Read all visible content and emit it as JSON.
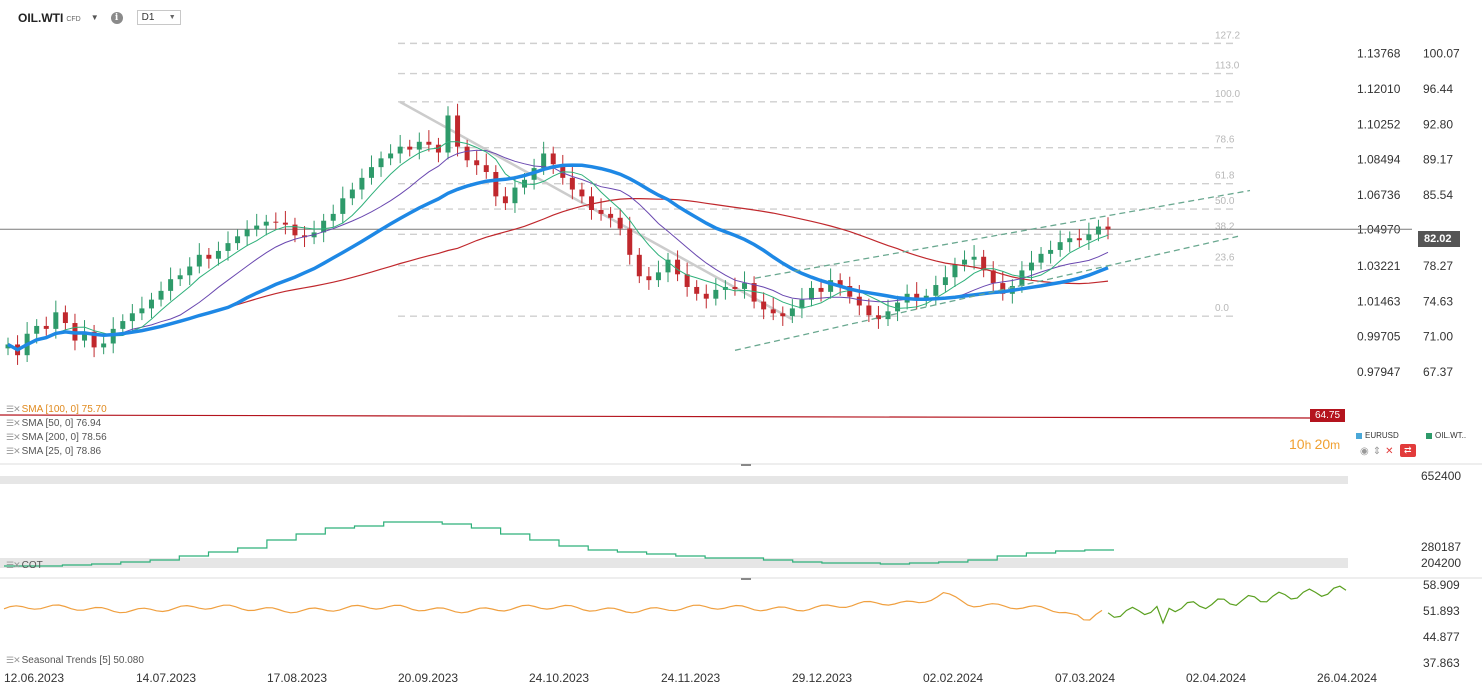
{
  "header": {
    "symbol": "OIL.WTI",
    "symbol_type": "CFD",
    "timeframe": "D1"
  },
  "last_price": "82.02",
  "support_price_tag": "64.75",
  "legend": [
    {
      "label": "SMA [100, 0] 75.70",
      "color": "#e08a1e"
    },
    {
      "label": "SMA [50, 0] 76.94",
      "color": "#555555"
    },
    {
      "label": "SMA [200, 0] 78.56",
      "color": "#555555"
    },
    {
      "label": "SMA [25, 0] 78.86",
      "color": "#555555"
    }
  ],
  "timer": {
    "hours": "10",
    "minutes": "20"
  },
  "overlay_legend": {
    "eurusd": "EURUSD",
    "oilwti": "OIL.WT..",
    "eurusd_color": "#4aa8d8",
    "oil_color": "#2e9a6a"
  },
  "cot_label": "COT",
  "seasonal_label": "Seasonal  Trends [5] 50.080",
  "colors": {
    "up": "#2e9a6a",
    "down": "#c0282d",
    "sma_blue": "#1e88e5",
    "sma_red": "#c0282d",
    "sma_green": "#2eb07a",
    "sma_purple": "#6a48b0",
    "seasonal_orange": "#f0a040",
    "seasonal_green": "#5aa020"
  },
  "chart_data": [
    {
      "type": "candlestick",
      "title": "OIL.WTI D1",
      "x_ticks": [
        "12.06.2023",
        "14.07.2023",
        "17.08.2023",
        "20.09.2023",
        "24.10.2023",
        "24.11.2023",
        "29.12.2023",
        "02.02.2024",
        "07.03.2024",
        "02.04.2024",
        "26.04.2024"
      ],
      "y_ticks_right": [
        "100.07",
        "96.44",
        "92.80",
        "89.17",
        "85.54",
        "82.02",
        "78.27",
        "74.63",
        "71.00",
        "67.37"
      ],
      "y_ticks_eurusd": [
        "1.13768",
        "1.12010",
        "1.10252",
        "1.08494",
        "1.06736",
        "1.04970",
        "1.03221",
        "1.01463",
        "0.99705",
        "0.97947"
      ],
      "ylim": [
        64.5,
        103.5
      ],
      "fibonacci_levels": [
        "127.2",
        "113.0",
        "100.0",
        "78.6",
        "61.8",
        "50.0",
        "38.2",
        "23.6",
        "0.0"
      ],
      "fibonacci_prices": [
        101.1,
        98.0,
        95.1,
        90.4,
        86.7,
        84.1,
        81.5,
        78.3,
        73.1
      ],
      "close": [
        70.2,
        69.1,
        71.3,
        72.1,
        71.8,
        73.5,
        72.4,
        70.6,
        71.5,
        69.9,
        70.3,
        71.8,
        72.6,
        73.4,
        73.9,
        74.8,
        75.7,
        76.9,
        77.3,
        78.2,
        79.4,
        79.0,
        79.8,
        80.6,
        81.3,
        82.0,
        82.4,
        82.8,
        82.7,
        82.5,
        81.4,
        81.2,
        81.7,
        82.9,
        83.6,
        85.2,
        86.1,
        87.3,
        88.4,
        89.3,
        89.8,
        90.5,
        90.2,
        91.0,
        90.7,
        89.9,
        93.7,
        90.5,
        89.1,
        88.6,
        87.9,
        85.4,
        84.7,
        86.3,
        87.1,
        88.3,
        89.8,
        88.7,
        87.3,
        86.1,
        85.4,
        84.0,
        83.6,
        83.2,
        82.1,
        79.4,
        77.2,
        76.8,
        77.6,
        78.9,
        77.4,
        76.1,
        75.4,
        74.9,
        75.8,
        76.1,
        75.9,
        76.5,
        74.6,
        73.8,
        73.4,
        73.1,
        73.9,
        74.8,
        76.0,
        75.6,
        76.8,
        76.2,
        75.1,
        74.2,
        73.2,
        72.8,
        73.6,
        74.5,
        75.4,
        74.8,
        75.2,
        76.3,
        77.1,
        78.4,
        78.9,
        79.2,
        77.8,
        76.5,
        75.4,
        76.2,
        77.8,
        78.6,
        79.5,
        79.9,
        80.7,
        81.1,
        80.9,
        81.5,
        82.3,
        82.0
      ]
    },
    {
      "type": "line",
      "title": "COT",
      "y_ticks": [
        "652400",
        "280187",
        "204200"
      ]
    },
    {
      "type": "line",
      "title": "Seasonal Trends [5]",
      "y_ticks": [
        "58.909",
        "51.893",
        "44.877",
        "37.863"
      ]
    }
  ]
}
